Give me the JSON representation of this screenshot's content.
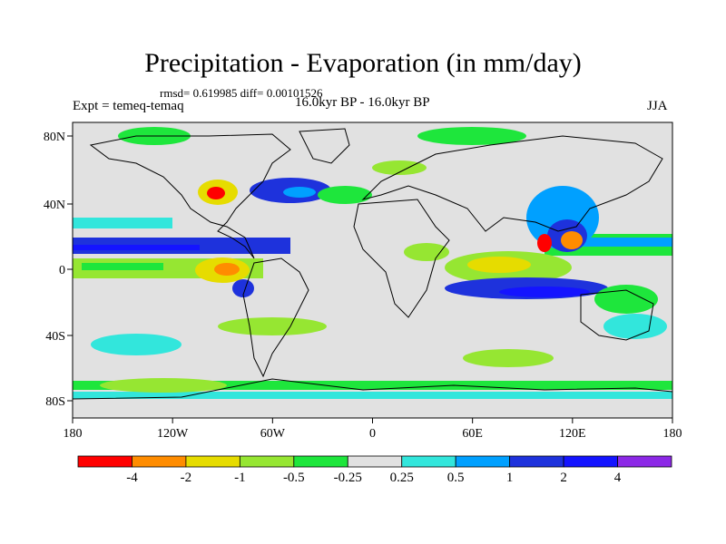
{
  "title": "Precipitation - Evaporation (in mm/day)",
  "stats": "rmsd= 0.619985 diff= 0.00101526",
  "experiment": "Expt = temeq-temaq",
  "period": "16.0kyr BP - 16.0kyr BP",
  "season": "JJA",
  "y_ticks": [
    "80N",
    "40N",
    "0",
    "40S",
    "80S"
  ],
  "x_ticks": [
    "180",
    "120W",
    "60W",
    "0",
    "60E",
    "120E",
    "180"
  ],
  "colorbar": {
    "labels": [
      "-4",
      "-2",
      "-1",
      "-0.5",
      "-0.25",
      "0.25",
      "0.5",
      "1",
      "2",
      "4"
    ],
    "colors": [
      "#ff0000",
      "#ff8c00",
      "#e6dc00",
      "#96e632",
      "#1ee63c",
      "#e1e1e1",
      "#32e6dc",
      "#00a0ff",
      "#1e32dc",
      "#1414ff",
      "#8c28e6"
    ]
  },
  "colors": {
    "land_sea_neutral": "#e1e1e1",
    "coastline": "#000000"
  }
}
